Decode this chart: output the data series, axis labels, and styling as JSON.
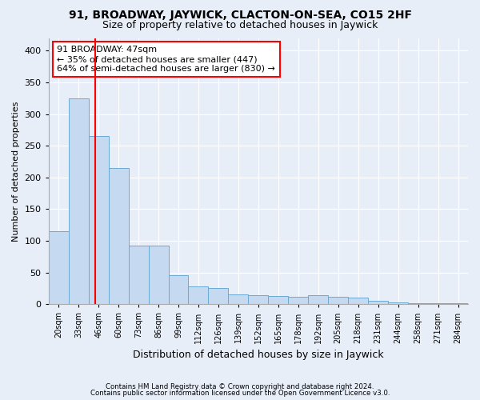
{
  "title1": "91, BROADWAY, JAYWICK, CLACTON-ON-SEA, CO15 2HF",
  "title2": "Size of property relative to detached houses in Jaywick",
  "xlabel": "Distribution of detached houses by size in Jaywick",
  "ylabel": "Number of detached properties",
  "footnote1": "Contains HM Land Registry data © Crown copyright and database right 2024.",
  "footnote2": "Contains public sector information licensed under the Open Government Licence v3.0.",
  "categories": [
    "20sqm",
    "33sqm",
    "46sqm",
    "60sqm",
    "73sqm",
    "86sqm",
    "99sqm",
    "112sqm",
    "126sqm",
    "139sqm",
    "152sqm",
    "165sqm",
    "178sqm",
    "192sqm",
    "205sqm",
    "218sqm",
    "231sqm",
    "244sqm",
    "258sqm",
    "271sqm",
    "284sqm"
  ],
  "values": [
    115,
    325,
    265,
    215,
    93,
    92,
    46,
    28,
    25,
    15,
    14,
    13,
    12,
    14,
    12,
    10,
    5,
    3,
    2,
    2,
    2
  ],
  "bar_color": "#c5d9f0",
  "bar_edge_color": "#6aaad4",
  "property_line_x": 1.85,
  "annotation_text": "91 BROADWAY: 47sqm\n← 35% of detached houses are smaller (447)\n64% of semi-detached houses are larger (830) →",
  "annotation_box_color": "white",
  "annotation_box_edge_color": "red",
  "property_line_color": "red",
  "ylim": [
    0,
    420
  ],
  "yticks": [
    0,
    50,
    100,
    150,
    200,
    250,
    300,
    350,
    400
  ],
  "bg_color": "#e8eef8",
  "plot_bg_color": "#e8eef8",
  "title1_fontsize": 10,
  "title2_fontsize": 9,
  "annotation_fontsize": 8,
  "ylabel_fontsize": 8,
  "xlabel_fontsize": 9
}
